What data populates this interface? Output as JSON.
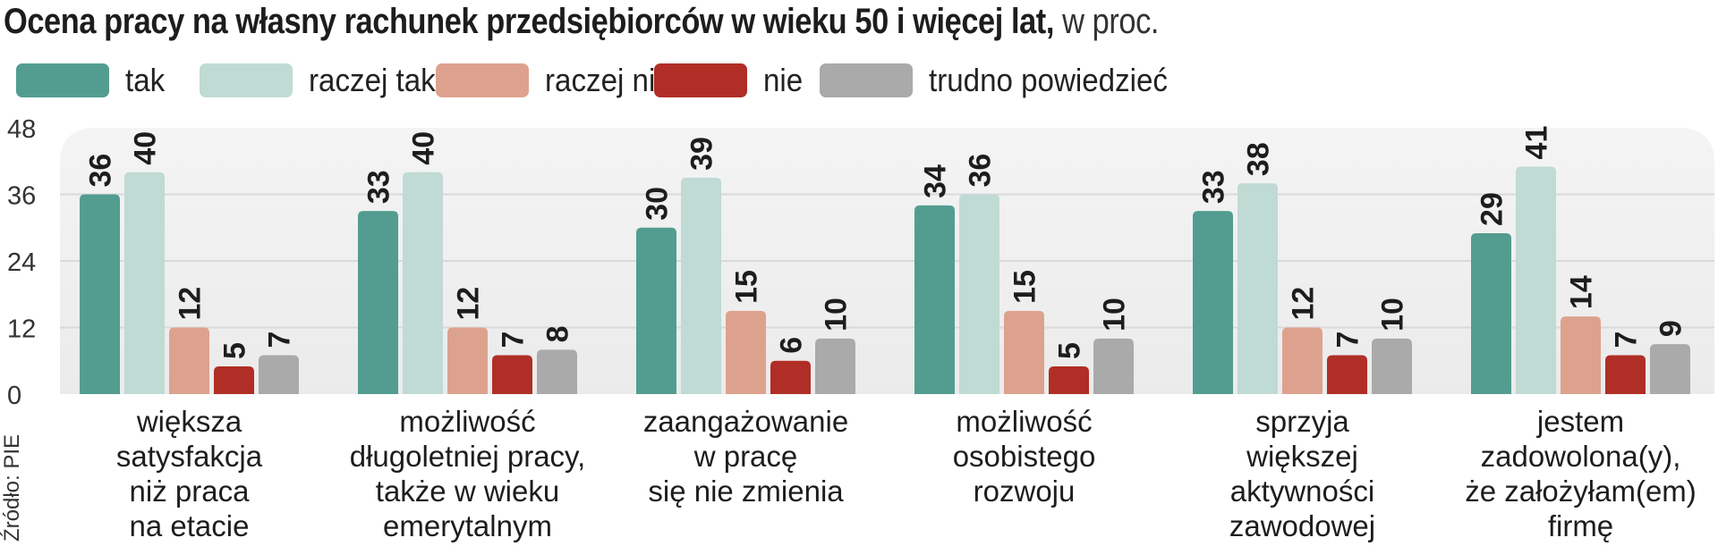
{
  "chart_data": {
    "type": "bar",
    "title": "Ocena pracy na własny rachunek przedsiębiorców w wieku 50 i więcej lat,",
    "unit": "w proc.",
    "source": "Źródło: PIE",
    "ylim": [
      0,
      48
    ],
    "yticks": [
      "0",
      "12",
      "24",
      "36",
      "48"
    ],
    "legend_position": "top-left",
    "categories": [
      [
        "większa",
        "satysfakcja",
        "niż praca",
        "na etacie"
      ],
      [
        "możliwość",
        "długoletniej pracy,",
        "także w wieku",
        "emerytalnym"
      ],
      [
        "zaangażowanie",
        "w pracę",
        "się nie zmienia"
      ],
      [
        "możliwość",
        "osobistego",
        "rozwoju"
      ],
      [
        "sprzyja",
        "większej",
        "aktywności",
        "zawodowej"
      ],
      [
        "jestem",
        "zadowolona(y),",
        "że założyłam(em)",
        "firmę"
      ]
    ],
    "series": [
      {
        "name": "tak",
        "color": "#529d90",
        "values": [
          36,
          33,
          30,
          34,
          33,
          29
        ]
      },
      {
        "name": "raczej tak",
        "color": "#c0dad4",
        "values": [
          40,
          40,
          39,
          36,
          38,
          41
        ]
      },
      {
        "name": "raczej nie",
        "color": "#dda28e",
        "values": [
          12,
          12,
          15,
          15,
          12,
          14
        ]
      },
      {
        "name": "nie",
        "color": "#b02e25",
        "values": [
          5,
          7,
          6,
          5,
          7,
          7
        ]
      },
      {
        "name": "trudno powiedzieć",
        "color": "#aaaaaa",
        "values": [
          7,
          8,
          10,
          10,
          10,
          9
        ]
      }
    ]
  }
}
